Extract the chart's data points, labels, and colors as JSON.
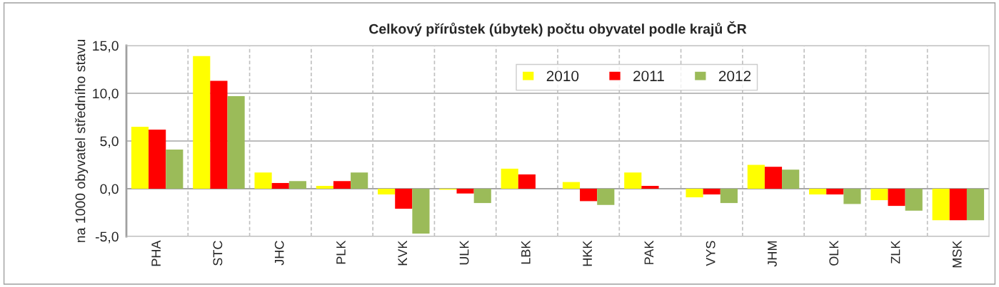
{
  "chart_data": {
    "type": "bar",
    "title": "Celkový přírůstek (úbytek) počtu obyvatel podle krajů ČR",
    "ylabel": "na 1000 obyvatel středního stavu",
    "categories": [
      "PHA",
      "STC",
      "JHC",
      "PLK",
      "KVK",
      "ULK",
      "LBK",
      "HKK",
      "PAK",
      "VYS",
      "JHM",
      "OLK",
      "ZLK",
      "MSK"
    ],
    "series": [
      {
        "name": "2010",
        "color": "#ffff00",
        "values": [
          6.5,
          13.9,
          1.7,
          0.3,
          -0.6,
          -0.1,
          2.1,
          0.7,
          1.7,
          -0.9,
          2.5,
          -0.6,
          -1.2,
          -3.3
        ]
      },
      {
        "name": "2011",
        "color": "#ff0000",
        "values": [
          6.2,
          11.3,
          0.6,
          0.8,
          -2.1,
          -0.5,
          1.5,
          -1.3,
          0.3,
          -0.6,
          2.3,
          -0.6,
          -1.8,
          -3.3
        ]
      },
      {
        "name": "2012",
        "color": "#9bbb59",
        "values": [
          4.1,
          9.7,
          0.8,
          1.7,
          -4.7,
          -1.5,
          0.0,
          -1.7,
          0.0,
          -1.5,
          2.0,
          -1.6,
          -2.3,
          -3.3
        ]
      }
    ],
    "ylim": [
      -5,
      15
    ],
    "yticks": [
      {
        "value": -5,
        "label": "-5,0"
      },
      {
        "value": 0,
        "label": "0,0"
      },
      {
        "value": 5,
        "label": "5,0"
      },
      {
        "value": 10,
        "label": "10,0"
      },
      {
        "value": 15,
        "label": "15,0"
      }
    ],
    "grid": true,
    "legend": "top right"
  }
}
